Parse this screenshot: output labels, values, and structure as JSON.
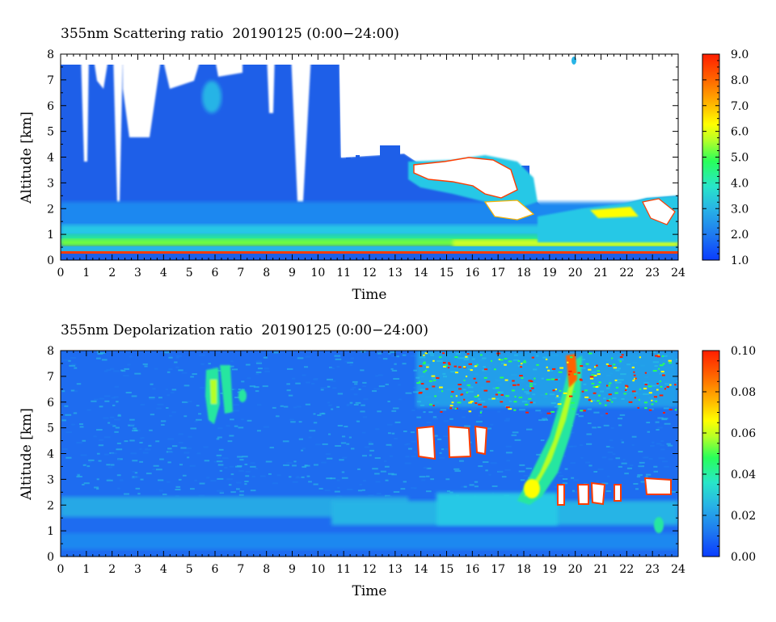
{
  "chart_data": [
    {
      "type": "heatmap",
      "title": "355nm Scattering ratio  20190125 (0:00−24:00)",
      "xlabel": "Time",
      "ylabel": "Altitude [km]",
      "xlim": [
        0,
        24
      ],
      "ylim": [
        0,
        8
      ],
      "x_ticks": [
        "0",
        "1",
        "2",
        "3",
        "4",
        "5",
        "6",
        "7",
        "8",
        "9",
        "10",
        "11",
        "12",
        "13",
        "14",
        "15",
        "16",
        "17",
        "18",
        "19",
        "20",
        "21",
        "22",
        "23",
        "24"
      ],
      "y_ticks": [
        "0",
        "1",
        "2",
        "3",
        "4",
        "5",
        "6",
        "7",
        "8"
      ],
      "colorbar": {
        "min": 1.0,
        "max": 9.0,
        "tick_labels": [
          "1.0",
          "2.0",
          "3.0",
          "4.0",
          "5.0",
          "6.0",
          "7.0",
          "8.0",
          "9.0"
        ]
      },
      "colors": [
        "#0a3cff",
        "#1e78f0",
        "#28b4e6",
        "#28e6c8",
        "#28ff5a",
        "#b4ff28",
        "#ffff00",
        "#ffb400",
        "#ff6400",
        "#ff1e00"
      ]
    },
    {
      "type": "heatmap",
      "title": "355nm Depolarization ratio  20190125 (0:00−24:00)",
      "xlabel": "Time",
      "ylabel": "Altitude [km]",
      "xlim": [
        0,
        24
      ],
      "ylim": [
        0,
        8
      ],
      "x_ticks": [
        "0",
        "1",
        "2",
        "3",
        "4",
        "5",
        "6",
        "7",
        "8",
        "9",
        "10",
        "11",
        "12",
        "13",
        "14",
        "15",
        "16",
        "17",
        "18",
        "19",
        "20",
        "21",
        "22",
        "23",
        "24"
      ],
      "y_ticks": [
        "0",
        "1",
        "2",
        "3",
        "4",
        "5",
        "6",
        "7",
        "8"
      ],
      "colorbar": {
        "min": 0.0,
        "max": 0.1,
        "tick_labels": [
          "0.00",
          "0.02",
          "0.04",
          "0.06",
          "0.08",
          "0.10"
        ]
      },
      "colors": [
        "#0a3cff",
        "#1e78f0",
        "#28b4e6",
        "#28e6c8",
        "#28ff5a",
        "#b4ff28",
        "#ffff00",
        "#ffb400",
        "#ff6400",
        "#ff1e00"
      ]
    }
  ]
}
